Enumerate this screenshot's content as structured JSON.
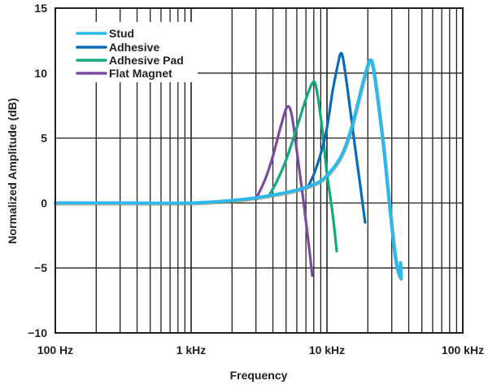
{
  "chart_data": {
    "type": "line",
    "title": "",
    "xlabel": "Frequency",
    "ylabel": "Normalized Amplitude (dB)",
    "xscale": "log",
    "xlim": [
      100,
      100000
    ],
    "ylim": [
      -10,
      15
    ],
    "grid": true,
    "legend_position": "upper-left",
    "x_ticks": [
      {
        "value": 100,
        "label": "100 Hz"
      },
      {
        "value": 1000,
        "label": "1 kHz"
      },
      {
        "value": 10000,
        "label": "10 kHz"
      },
      {
        "value": 100000,
        "label": "100 kHz"
      }
    ],
    "y_ticks": [
      {
        "value": 15,
        "label": "15"
      },
      {
        "value": 10,
        "label": "10"
      },
      {
        "value": 5,
        "label": "5"
      },
      {
        "value": 0,
        "label": "0"
      },
      {
        "value": -5,
        "label": "−5"
      },
      {
        "value": -10,
        "label": "−10"
      }
    ],
    "series": [
      {
        "name": "Stud",
        "color": "#2bb8ec",
        "points": [
          [
            100,
            0
          ],
          [
            300,
            0
          ],
          [
            1000,
            0
          ],
          [
            2000,
            0.2
          ],
          [
            3000,
            0.4
          ],
          [
            5000,
            0.8
          ],
          [
            7000,
            1.2
          ],
          [
            9000,
            1.7
          ],
          [
            11000,
            2.6
          ],
          [
            13000,
            3.8
          ],
          [
            15000,
            5.6
          ],
          [
            17000,
            7.8
          ],
          [
            19000,
            9.8
          ],
          [
            20800,
            11.0
          ],
          [
            22000,
            10.3
          ],
          [
            24000,
            7.5
          ],
          [
            26000,
            4.5
          ],
          [
            28000,
            1.2
          ],
          [
            30000,
            -1.8
          ],
          [
            32000,
            -4.3
          ],
          [
            33500,
            -5.3
          ],
          [
            34500,
            -5.6
          ],
          [
            34800,
            -4.6
          ],
          [
            35000,
            -5.8
          ]
        ]
      },
      {
        "name": "Adhesive",
        "color": "#0a6cb8",
        "points": [
          [
            7200,
            1.2
          ],
          [
            8000,
            2.2
          ],
          [
            9000,
            3.8
          ],
          [
            10000,
            5.8
          ],
          [
            11000,
            8.6
          ],
          [
            12000,
            10.6
          ],
          [
            12600,
            11.5
          ],
          [
            13200,
            11.0
          ],
          [
            14500,
            8.0
          ],
          [
            16000,
            4.5
          ],
          [
            17500,
            1.5
          ],
          [
            19100,
            -1.5
          ]
        ]
      },
      {
        "name": "Adhesive Pad",
        "color": "#13a87f",
        "points": [
          [
            3700,
            0.5
          ],
          [
            4200,
            1.5
          ],
          [
            5000,
            3.3
          ],
          [
            6000,
            5.8
          ],
          [
            7000,
            8.0
          ],
          [
            7900,
            9.3
          ],
          [
            8400,
            8.7
          ],
          [
            9200,
            5.8
          ],
          [
            10000,
            2.3
          ],
          [
            11000,
            -0.8
          ],
          [
            11800,
            -3.7
          ]
        ]
      },
      {
        "name": "Flat Magnet",
        "color": "#7b4aa0",
        "points": [
          [
            3000,
            0.3
          ],
          [
            3500,
            1.8
          ],
          [
            4000,
            3.6
          ],
          [
            4600,
            6.0
          ],
          [
            5100,
            7.4
          ],
          [
            5500,
            6.8
          ],
          [
            6000,
            4.0
          ],
          [
            6700,
            0.2
          ],
          [
            7300,
            -3.0
          ],
          [
            7800,
            -5.6
          ]
        ]
      }
    ]
  },
  "legend": {
    "items": [
      {
        "label": "Stud",
        "color": "#2bb8ec"
      },
      {
        "label": "Adhesive",
        "color": "#0a6cb8"
      },
      {
        "label": "Adhesive Pad",
        "color": "#13a87f"
      },
      {
        "label": "Flat Magnet",
        "color": "#7b4aa0"
      }
    ]
  },
  "axes": {
    "x_title": "Frequency",
    "y_title": "Normalized Amplitude (dB)"
  }
}
